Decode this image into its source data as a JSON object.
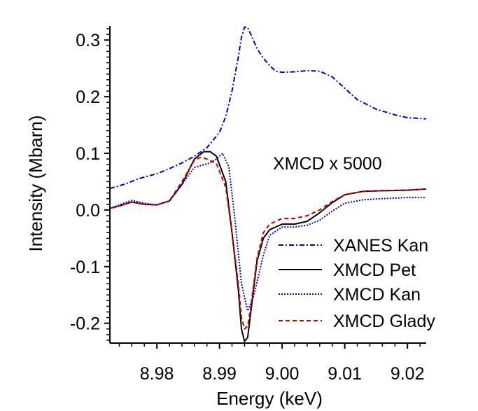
{
  "chart_data": {
    "type": "line",
    "title": "",
    "xlabel": "Energy (keV)",
    "ylabel": "Intensity (Mbarn)",
    "xlim": [
      8.9725,
      9.023
    ],
    "ylim": [
      -0.235,
      0.325
    ],
    "x_ticks": [
      8.98,
      8.99,
      9.0,
      9.01,
      9.02
    ],
    "x_tick_labels": [
      "8.98",
      "8.99",
      "9.00",
      "9.01",
      "9.02"
    ],
    "y_ticks": [
      -0.2,
      -0.1,
      0.0,
      0.1,
      0.2,
      0.3
    ],
    "y_tick_labels": [
      "-0.2",
      "-0.1",
      "0.0",
      "0.1",
      "0.2",
      "0.3"
    ],
    "grid": false,
    "legend_position": "bottom-right",
    "annotation": "XMCD x 5000",
    "series": [
      {
        "name": "XANES Kan",
        "color": "#0000cc",
        "dash": "dashdot",
        "x": [
          8.9725,
          8.975,
          8.977,
          8.98,
          8.982,
          8.984,
          8.986,
          8.988,
          8.99,
          8.991,
          8.992,
          8.993,
          8.9935,
          8.994,
          8.9945,
          8.995,
          8.996,
          8.997,
          8.998,
          8.999,
          9.0,
          9.002,
          9.004,
          9.006,
          9.008,
          9.01,
          9.012,
          9.015,
          9.018,
          9.02,
          9.023
        ],
        "y": [
          0.038,
          0.046,
          0.055,
          0.064,
          0.073,
          0.083,
          0.095,
          0.11,
          0.137,
          0.165,
          0.21,
          0.27,
          0.305,
          0.323,
          0.322,
          0.31,
          0.285,
          0.268,
          0.255,
          0.245,
          0.243,
          0.244,
          0.246,
          0.245,
          0.235,
          0.215,
          0.195,
          0.178,
          0.168,
          0.163,
          0.161
        ]
      },
      {
        "name": "XMCD Pet",
        "color": "#000000",
        "dash": "solid",
        "x": [
          8.9725,
          8.974,
          8.976,
          8.978,
          8.98,
          8.982,
          8.984,
          8.986,
          8.9875,
          8.9885,
          8.9895,
          8.991,
          8.992,
          8.993,
          8.9935,
          8.994,
          8.9945,
          8.995,
          8.996,
          8.997,
          8.998,
          9.0,
          9.002,
          9.004,
          9.006,
          9.008,
          9.01,
          9.013,
          9.016,
          9.02,
          9.023
        ],
        "y": [
          0.003,
          0.007,
          0.014,
          0.01,
          0.009,
          0.016,
          0.045,
          0.09,
          0.103,
          0.103,
          0.095,
          0.05,
          -0.04,
          -0.14,
          -0.21,
          -0.232,
          -0.225,
          -0.18,
          -0.09,
          -0.05,
          -0.035,
          -0.025,
          -0.025,
          -0.02,
          -0.005,
          0.013,
          0.027,
          0.033,
          0.034,
          0.035,
          0.037
        ]
      },
      {
        "name": "XMCD Kan",
        "color": "#0000cc",
        "dash": "dotted",
        "x": [
          8.9725,
          8.974,
          8.976,
          8.978,
          8.98,
          8.982,
          8.984,
          8.986,
          8.9875,
          8.9885,
          8.9895,
          8.9905,
          8.9915,
          8.9925,
          8.9935,
          8.9945,
          8.9955,
          8.997,
          8.998,
          9.0,
          9.002,
          9.004,
          9.006,
          9.008,
          9.01,
          9.013,
          9.016,
          9.02,
          9.023
        ],
        "y": [
          0.003,
          0.009,
          0.017,
          0.012,
          0.009,
          0.016,
          0.045,
          0.075,
          0.08,
          0.083,
          0.09,
          0.1,
          0.075,
          -0.02,
          -0.13,
          -0.178,
          -0.15,
          -0.08,
          -0.045,
          -0.03,
          -0.03,
          -0.027,
          -0.018,
          -0.002,
          0.012,
          0.018,
          0.02,
          0.022,
          0.022
        ]
      },
      {
        "name": "XMCD Glady",
        "color": "#cc0000",
        "dash": "dashed",
        "x": [
          8.9725,
          8.974,
          8.976,
          8.978,
          8.98,
          8.982,
          8.984,
          8.986,
          8.987,
          8.988,
          8.9895,
          8.991,
          8.992,
          8.993,
          8.9935,
          8.994,
          8.9945,
          8.995,
          8.996,
          8.997,
          8.998,
          9.0,
          9.002,
          9.004,
          9.006,
          9.008,
          9.01,
          9.013,
          9.016,
          9.02,
          9.023
        ],
        "y": [
          0.003,
          0.007,
          0.014,
          0.01,
          0.009,
          0.016,
          0.05,
          0.088,
          0.093,
          0.09,
          0.082,
          0.04,
          -0.04,
          -0.13,
          -0.19,
          -0.21,
          -0.205,
          -0.17,
          -0.085,
          -0.04,
          -0.025,
          -0.015,
          -0.015,
          -0.01,
          0.0,
          0.015,
          0.027,
          0.033,
          0.034,
          0.035,
          0.037
        ]
      }
    ]
  }
}
